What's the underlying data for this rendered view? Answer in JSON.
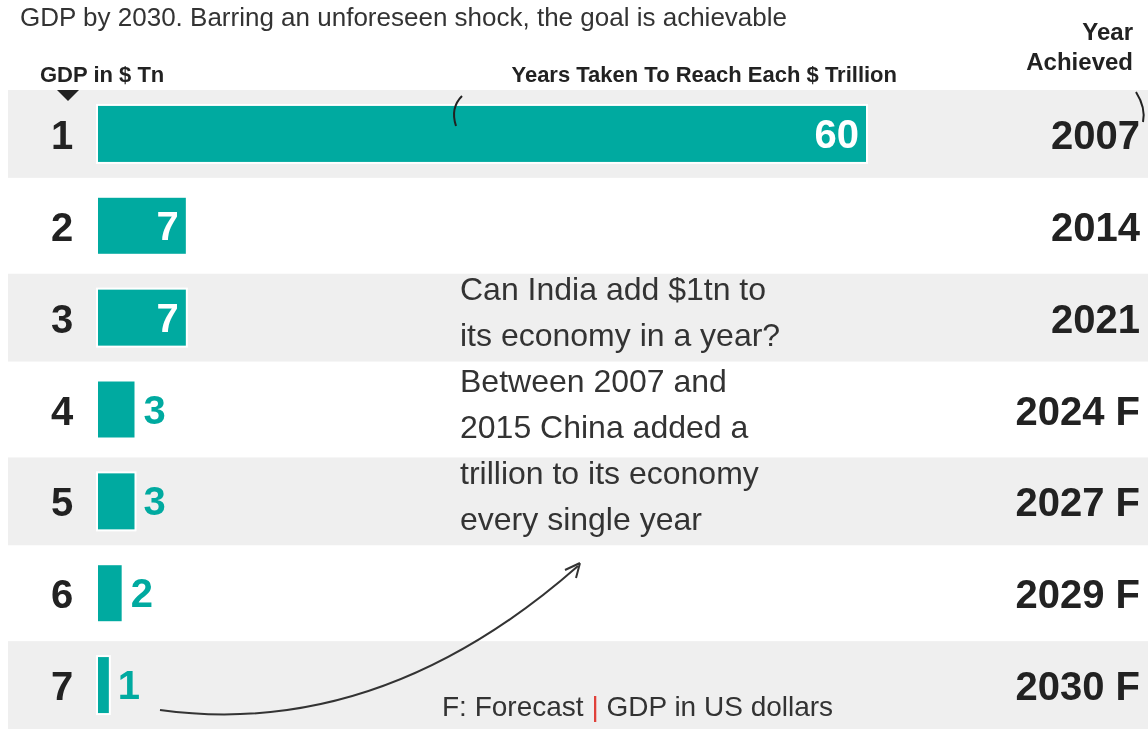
{
  "chart_data": {
    "type": "bar",
    "orientation": "horizontal",
    "title": "GDP by 2030. Barring an unforeseen shock, the goal is achievable",
    "ylabel": "GDP in $ Tn",
    "xlabel": "Years Taken To Reach Each $ Trillion",
    "categories": [
      "1",
      "2",
      "3",
      "4",
      "5",
      "6",
      "7"
    ],
    "y2_categories": [
      "2007",
      "2014",
      "2021",
      "2024 F",
      "2027 F",
      "2029 F",
      "2030 F"
    ],
    "values": [
      60,
      7,
      7,
      3,
      3,
      2,
      1
    ],
    "color": "#00aaa0",
    "data_labels": true,
    "tick_labels": "y",
    "annotations": [
      "Can India add $1tn to its economy in a year? Between 2007 and 2015 China added a trillion to its economy every single year",
      "F: Forecast | GDP in US dollars",
      "Year Achieved"
    ]
  }
}
